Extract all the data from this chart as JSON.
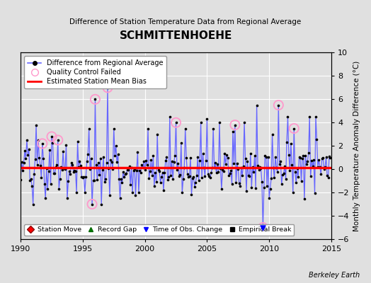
{
  "title": "SCHMITTENHOEHE",
  "subtitle": "Difference of Station Temperature Data from Regional Average",
  "ylabel": "Monthly Temperature Anomaly Difference (°C)",
  "xlim": [
    1990,
    2015
  ],
  "ylim": [
    -6,
    10
  ],
  "yticks": [
    -6,
    -4,
    -2,
    0,
    2,
    4,
    6,
    8,
    10
  ],
  "xticks": [
    1990,
    1995,
    2000,
    2005,
    2010,
    2015
  ],
  "bias_line_y": 0.15,
  "bias_color": "#ff0000",
  "line_color": "#6666ff",
  "dot_color": "#000000",
  "qc_color": "#ff99cc",
  "bg_color": "#e0e0e0",
  "grid_color": "#ffffff",
  "figwidth": 5.24,
  "figheight": 4.0,
  "dpi": 100
}
